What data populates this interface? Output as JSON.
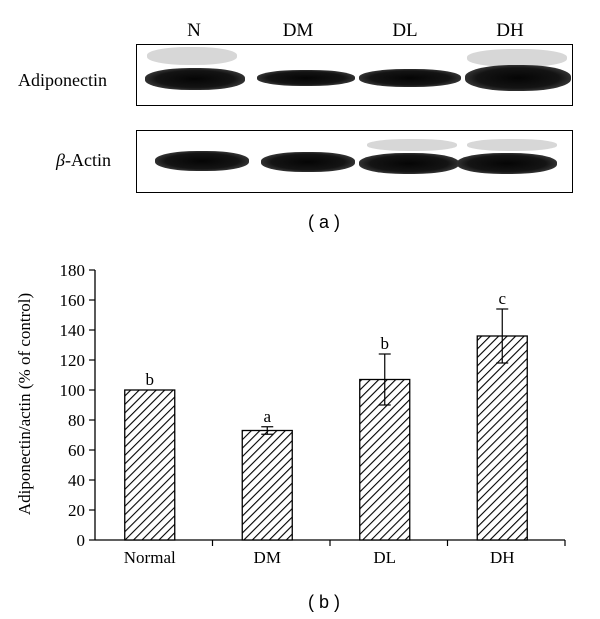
{
  "panel_a": {
    "lanes": [
      "N",
      "DM",
      "DL",
      "DH"
    ],
    "rows": [
      {
        "label_prefix": "",
        "label": "Adiponectin"
      },
      {
        "label_prefix": "β",
        "label": "-Actin"
      }
    ],
    "tag": "( a )"
  },
  "panel_b": {
    "tag": "( b )"
  },
  "chart_data": {
    "type": "bar",
    "categories": [
      "Normal",
      "DM",
      "DL",
      "DH"
    ],
    "values": [
      100,
      73,
      107,
      136
    ],
    "errors": [
      0,
      2.5,
      17,
      18
    ],
    "significance_letters": [
      "b",
      "a",
      "b",
      "c"
    ],
    "title": "",
    "xlabel": "",
    "ylabel": "Adiponectin/actin (% of control)",
    "ylim": [
      0,
      180
    ],
    "yticks": [
      0,
      20,
      40,
      60,
      80,
      100,
      120,
      140,
      160,
      180
    ],
    "bar_pattern": "diagonal-hatch",
    "grid": false
  }
}
